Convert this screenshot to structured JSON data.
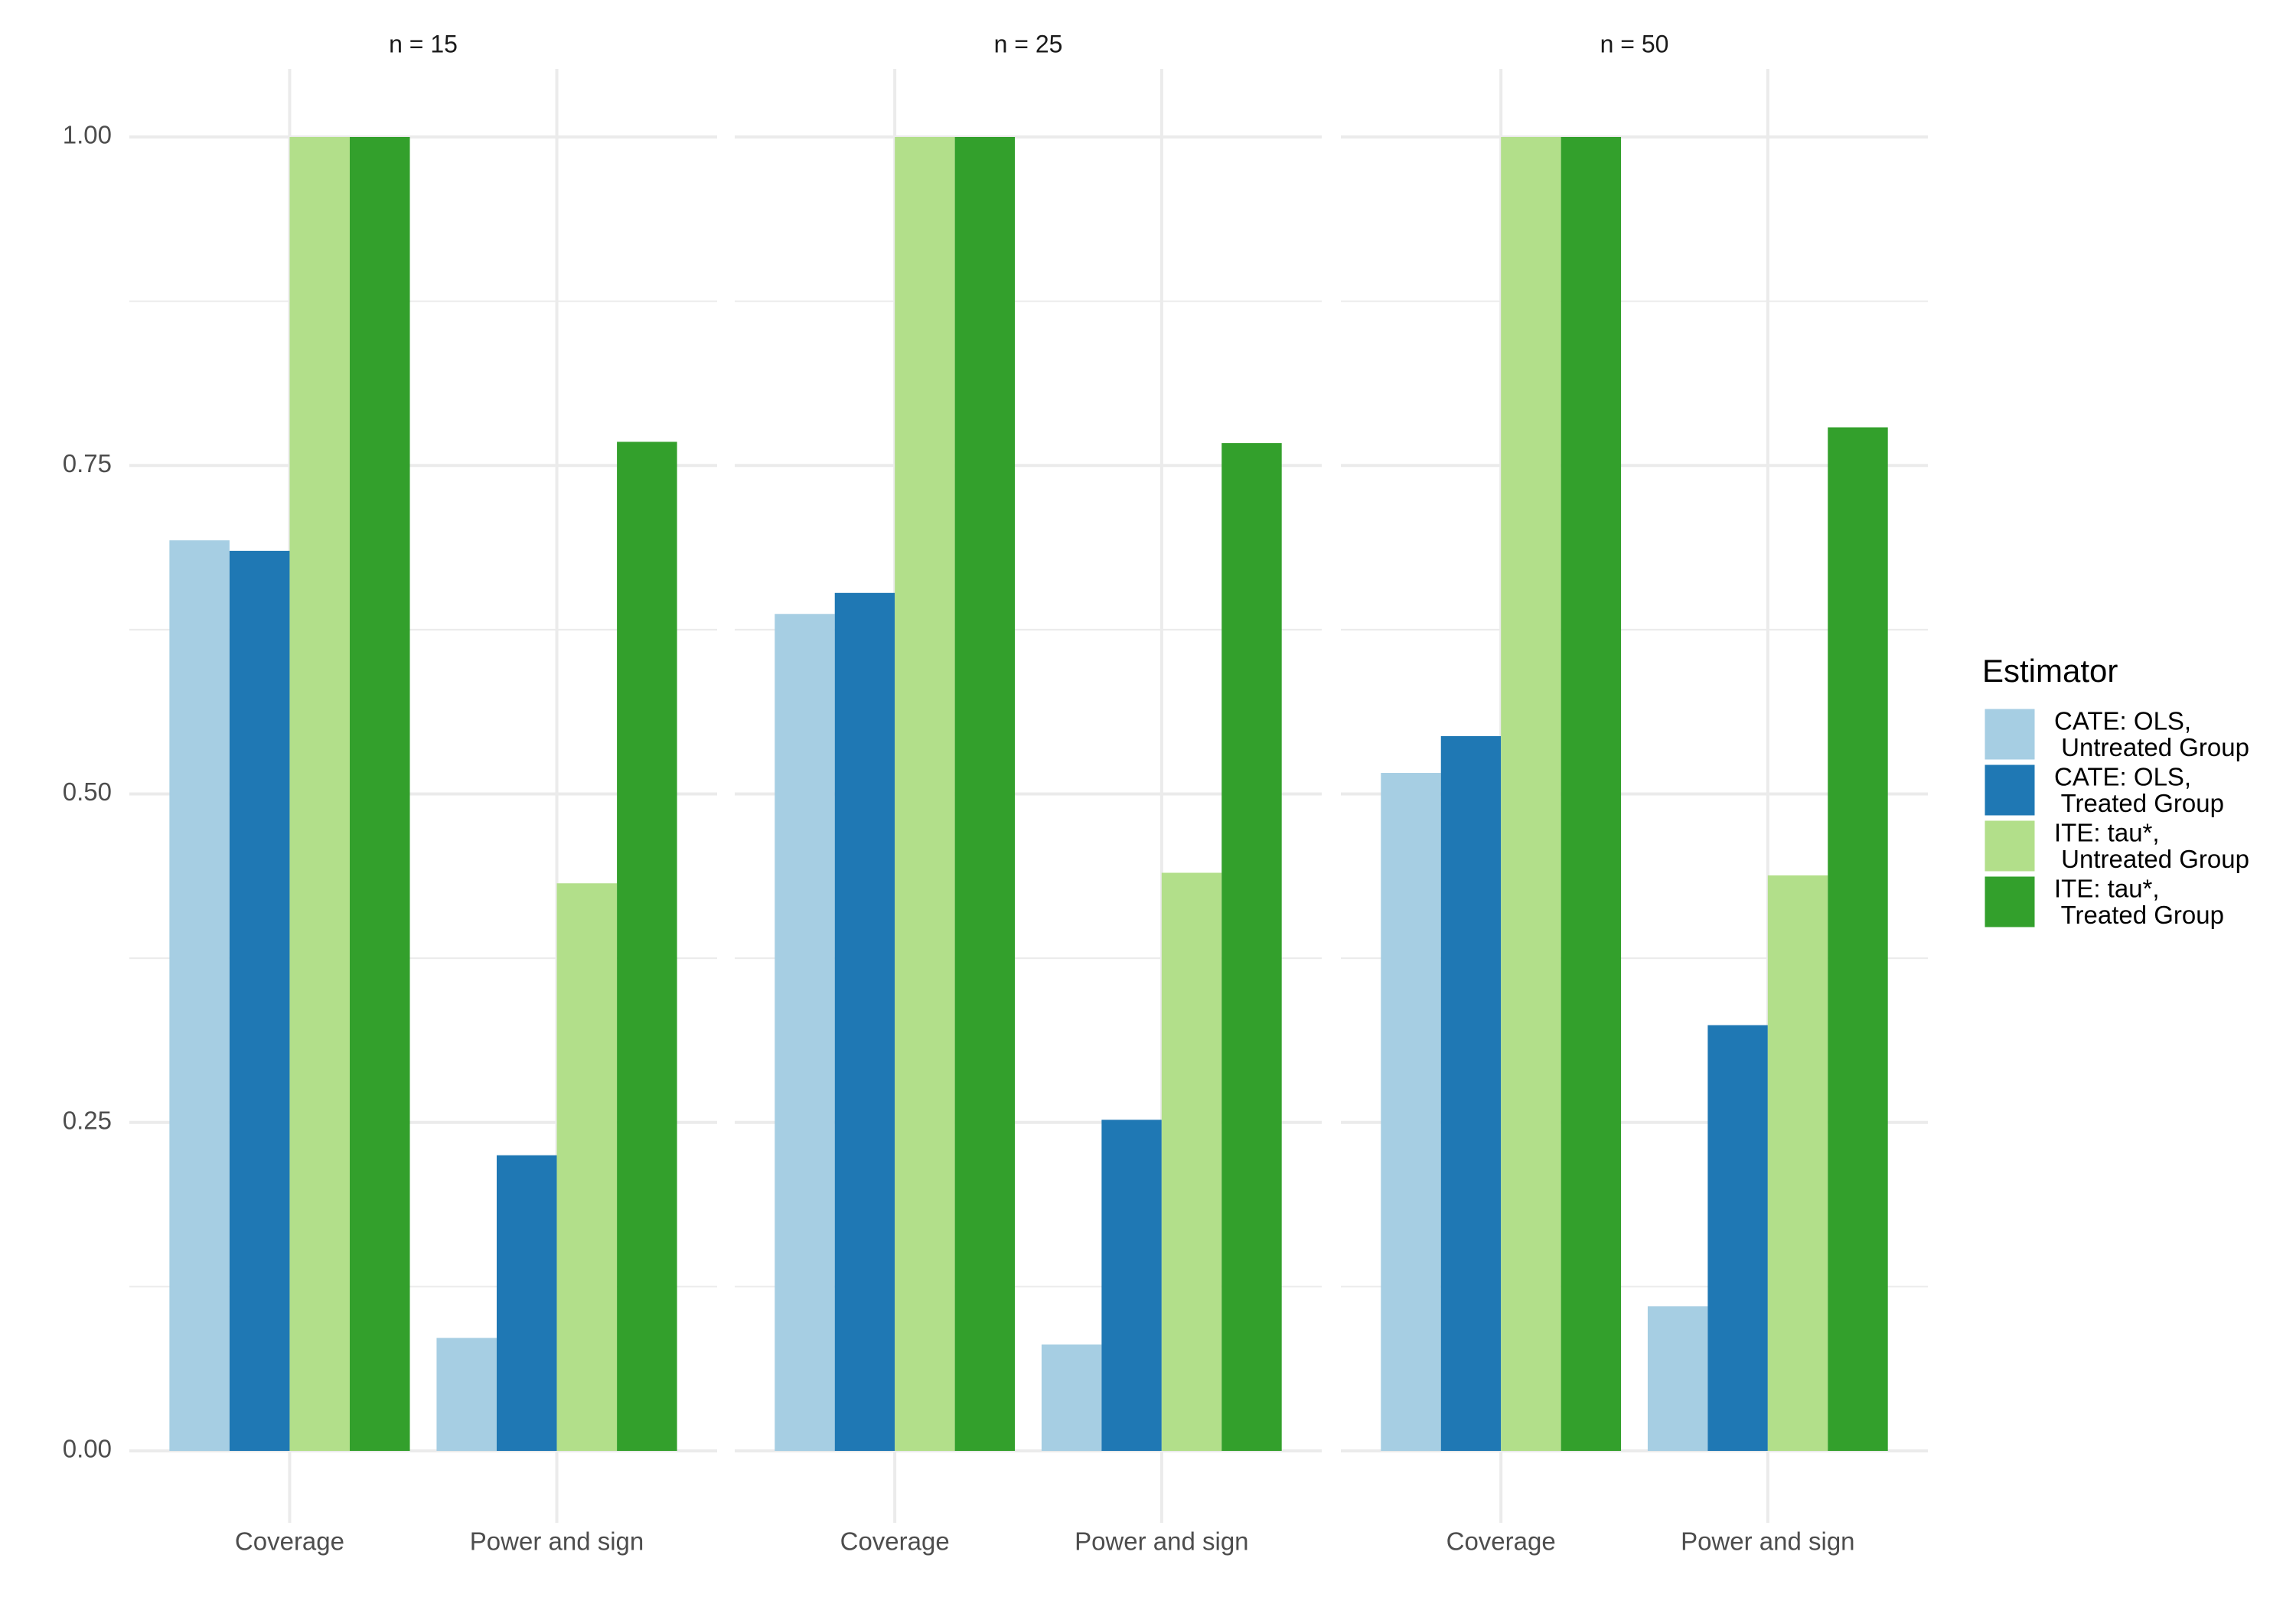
{
  "chart_data": {
    "type": "bar",
    "legend_title": "Estimator",
    "legend": "right",
    "grid": true,
    "categories": [
      "Coverage",
      "Power and sign"
    ],
    "ylim": [
      0,
      1
    ],
    "yticks": [
      {
        "value": 0,
        "label": "0.00"
      },
      {
        "value": 0.25,
        "label": "0.25"
      },
      {
        "value": 0.5,
        "label": "0.50"
      },
      {
        "value": 0.75,
        "label": "0.75"
      },
      {
        "value": 1,
        "label": "1.00"
      }
    ],
    "series": [
      {
        "name": "CATE: OLS,\n Untreated Group",
        "color": "#a6cee3"
      },
      {
        "name": "CATE: OLS,\n Treated Group",
        "color": "#1f78b4"
      },
      {
        "name": "ITE: tau*,\n Untreated Group",
        "color": "#b2df8a"
      },
      {
        "name": "ITE: tau*,\n Treated Group",
        "color": "#33a02c"
      }
    ],
    "facets": [
      {
        "title": "n = 15",
        "series": [
          {
            "values": [
              0.693,
              0.086
            ]
          },
          {
            "values": [
              0.685,
              0.225
            ]
          },
          {
            "values": [
              1.0,
              0.432
            ]
          },
          {
            "values": [
              1.0,
              0.768
            ]
          }
        ]
      },
      {
        "title": "n = 25",
        "series": [
          {
            "values": [
              0.637,
              0.081
            ]
          },
          {
            "values": [
              0.653,
              0.252
            ]
          },
          {
            "values": [
              1.0,
              0.44
            ]
          },
          {
            "values": [
              1.0,
              0.767
            ]
          }
        ]
      },
      {
        "title": "n = 50",
        "series": [
          {
            "values": [
              0.516,
              0.11
            ]
          },
          {
            "values": [
              0.544,
              0.324
            ]
          },
          {
            "values": [
              1.0,
              0.438
            ]
          },
          {
            "values": [
              1.0,
              0.779
            ]
          }
        ]
      }
    ]
  }
}
